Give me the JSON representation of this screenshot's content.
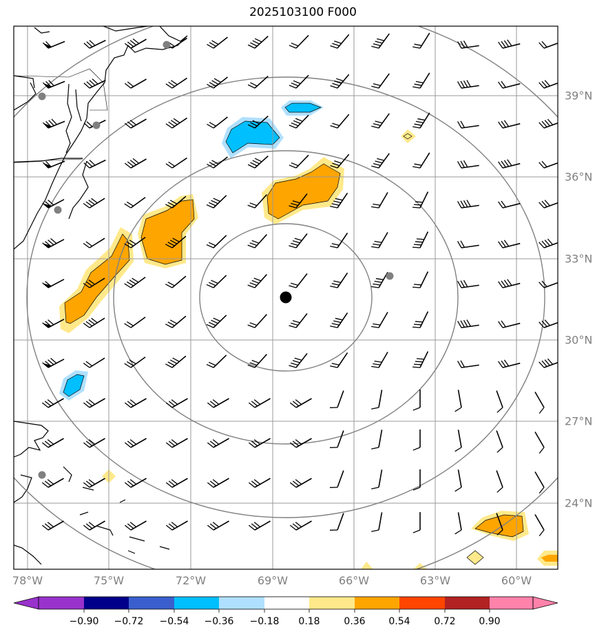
{
  "title": "2025103100 F000",
  "lon_labels": [
    "78°W",
    "75°W",
    "72°W",
    "69°W",
    "66°W",
    "63°W",
    "60°W"
  ],
  "lat_labels": [
    "39°N",
    "36°N",
    "33°N",
    "30°N",
    "27°N",
    "24°N"
  ],
  "colorbar": {
    "ticks": [
      "−0.90",
      "−0.72",
      "−0.54",
      "−0.36",
      "−0.18",
      "0.18",
      "0.36",
      "0.54",
      "0.72",
      "0.90"
    ],
    "colors": [
      "#9932cc",
      "#00008b",
      "#3a5fcd",
      "#00bfff",
      "#b0e0ff",
      "#ffffff",
      "#ffe98a",
      "#ffa500",
      "#ff4500",
      "#b22222",
      "#ff82ab"
    ]
  },
  "colors": {
    "grid": "#999999",
    "range_rings": "#808080",
    "coast": "#000000",
    "center_marker": "#000000",
    "station_marker": "#808080",
    "positive_shading": [
      "#ffe98a",
      "#ffa500"
    ],
    "negative_shading": [
      "#b0e0ff",
      "#00bfff"
    ]
  }
}
